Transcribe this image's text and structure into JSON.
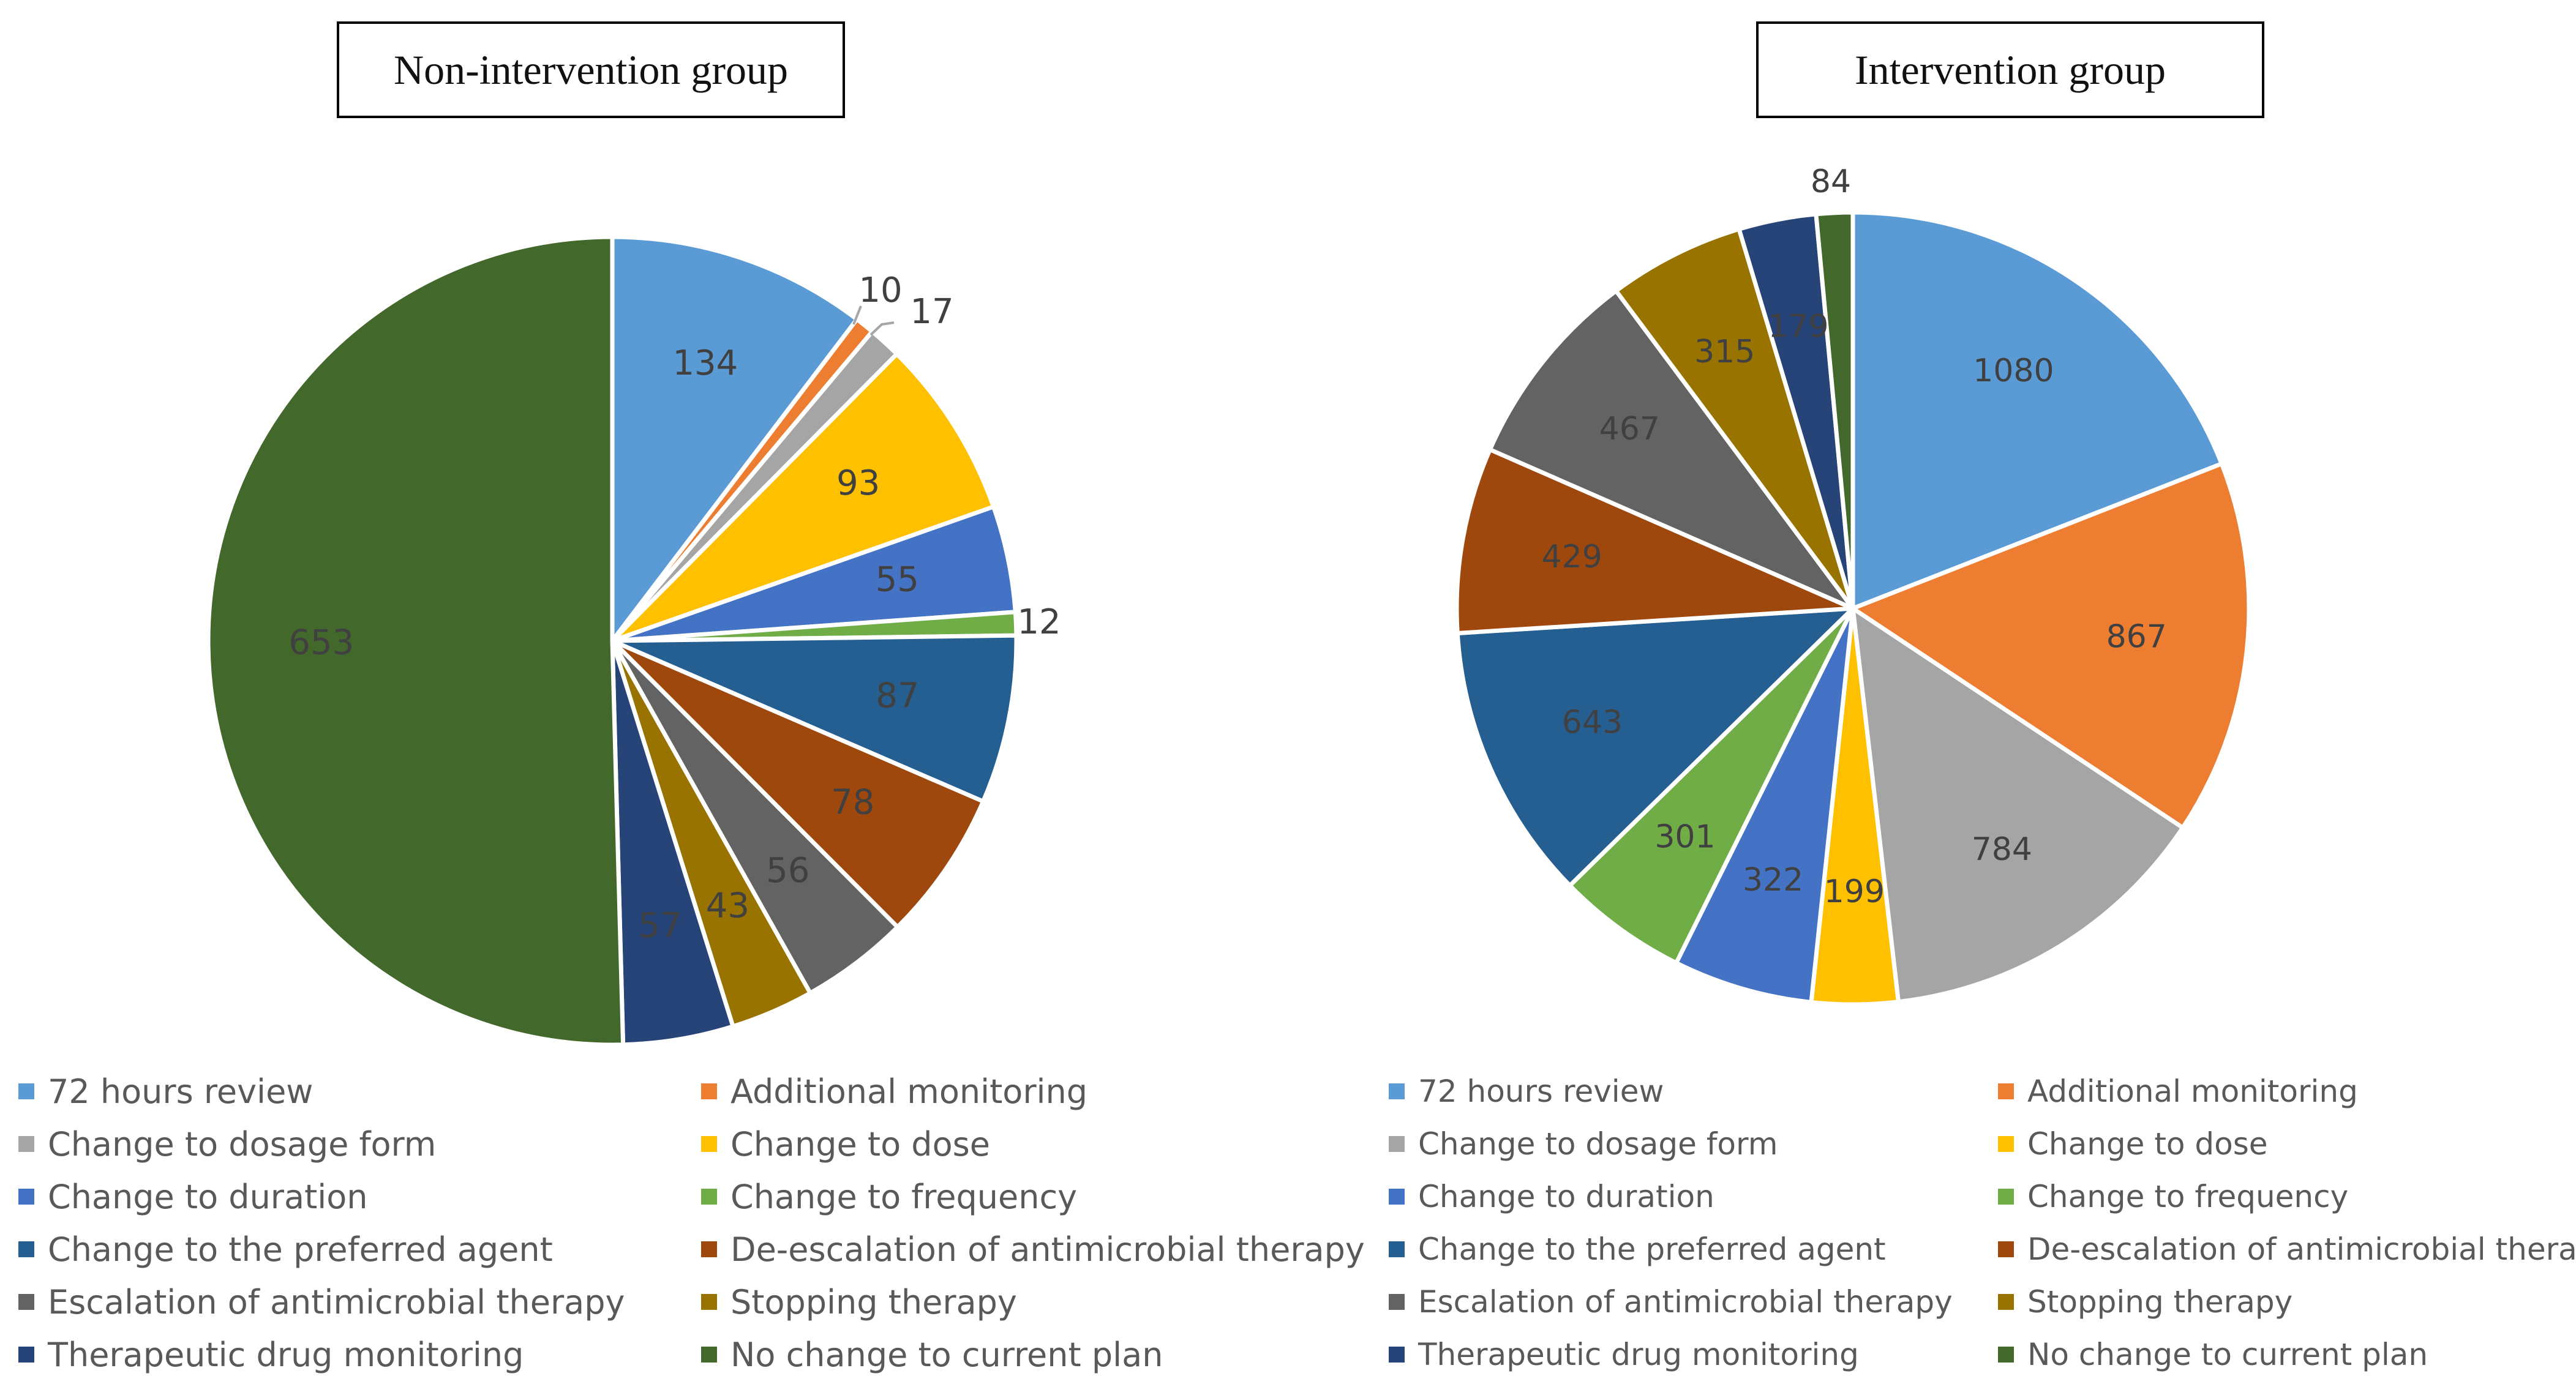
{
  "chart_data": [
    {
      "type": "pie",
      "title": "Non-intervention group",
      "categories": [
        "72 hours review",
        "Additional monitoring",
        "Change to dosage form",
        "Change to dose",
        "Change to duration",
        "Change to frequency",
        "Change to the preferred agent",
        "De-escalation of antimicrobial therapy",
        "Escalation of antimicrobial therapy",
        "Stopping therapy",
        "Therapeutic drug monitoring",
        "No change to current plan"
      ],
      "values": [
        134,
        10,
        17,
        93,
        55,
        12,
        87,
        78,
        56,
        43,
        57,
        653
      ],
      "labels": [
        "134",
        "10",
        "17",
        "93",
        "55",
        "12",
        "87",
        "78",
        "56",
        "43",
        "57",
        "653"
      ],
      "legend": "bottom"
    },
    {
      "type": "pie",
      "title": "Intervention group",
      "categories": [
        "72 hours review",
        "Additional monitoring",
        "Change to dosage form",
        "Change to dose",
        "Change to duration",
        "Change to frequency",
        "Change to the preferred agent",
        "De-escalation of antimicrobial therapy",
        "Escalation of antimicrobial therapy",
        "Stopping therapy",
        "Therapeutic drug monitoring",
        "No change to current plan"
      ],
      "values": [
        1080,
        867,
        784,
        199,
        322,
        301,
        643,
        429,
        467,
        315,
        179,
        84
      ],
      "labels": [
        "1080",
        "867",
        "784",
        "199",
        "322",
        "301",
        "643",
        "429",
        "467",
        "315",
        "179",
        "84"
      ],
      "legend": "bottom"
    }
  ],
  "colors": [
    "#5B9BD5",
    "#ED7D31",
    "#A5A5A5",
    "#FFC000",
    "#4472C4",
    "#70AD47",
    "#255E91",
    "#9E480E",
    "#636363",
    "#997300",
    "#264478",
    "#43682B"
  ],
  "label_colors": {
    "inside": "#404040",
    "outside": "#404040"
  }
}
